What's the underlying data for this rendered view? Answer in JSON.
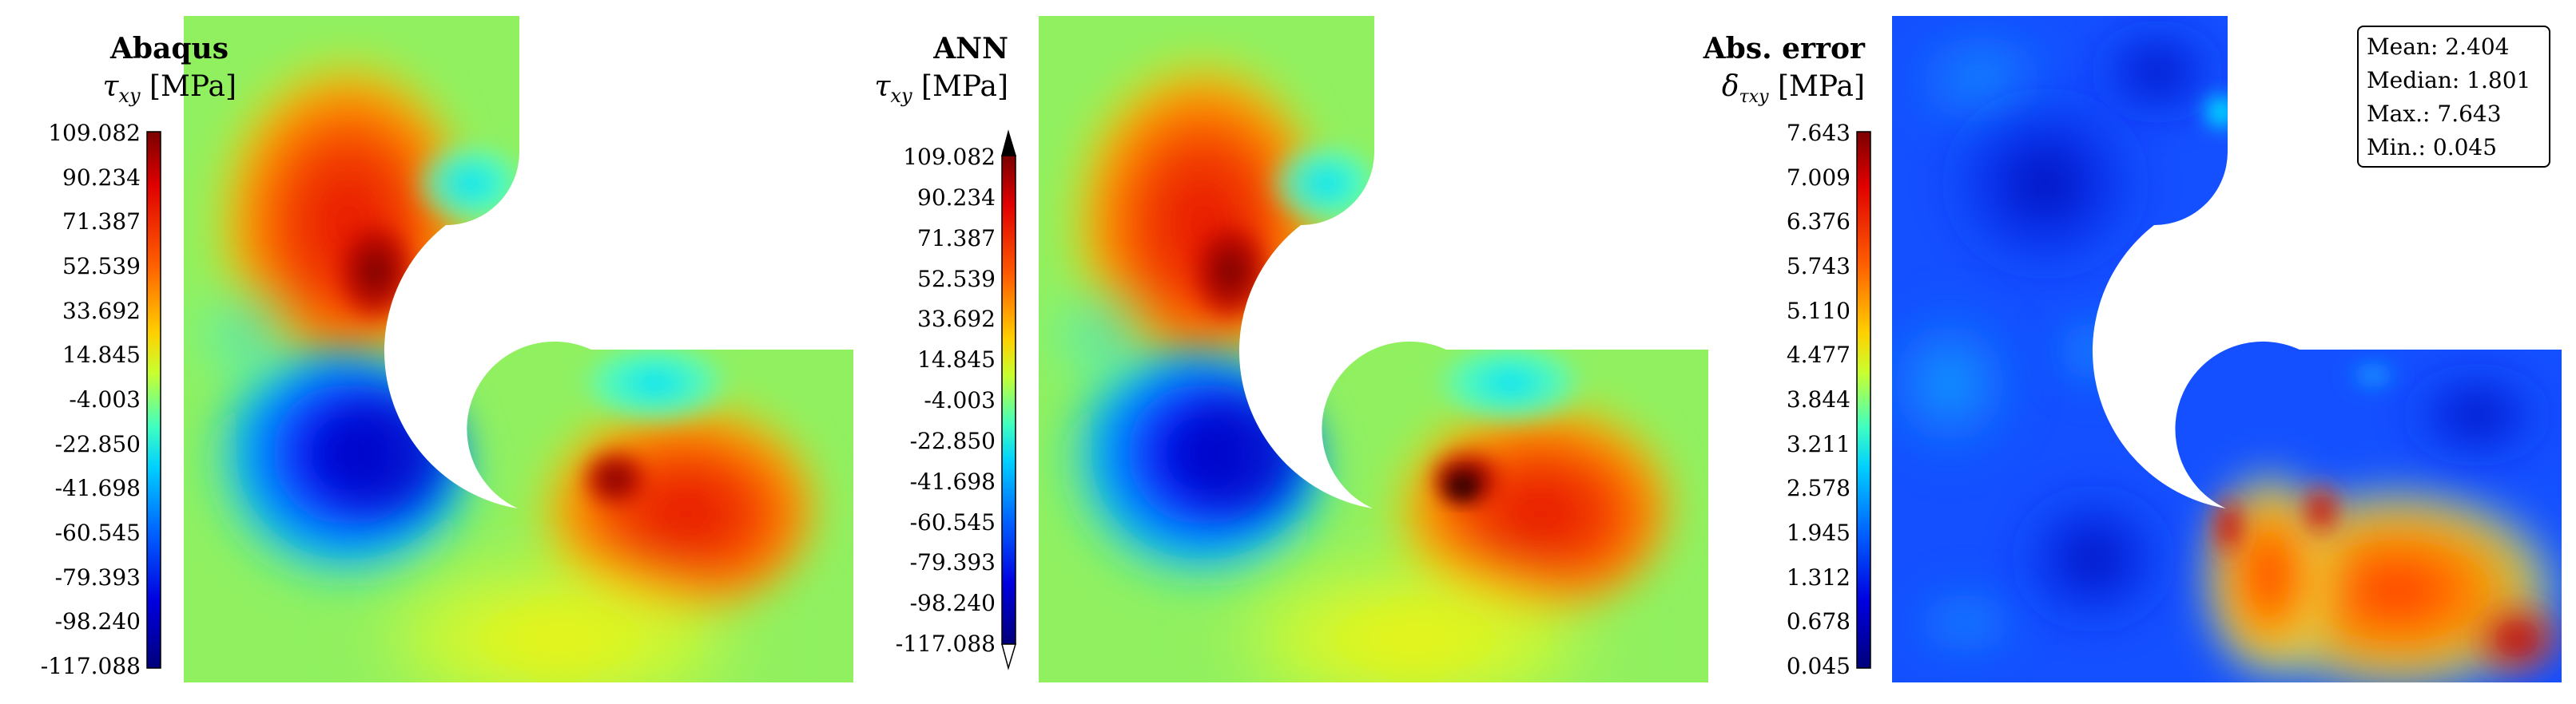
{
  "panels": [
    {
      "title": "Abaqus",
      "quantity": "τ",
      "quantity_sub": "xy",
      "unit": "[MPa]",
      "colorbar_ticks": [
        "109.082",
        "90.234",
        "71.387",
        "52.539",
        "33.692",
        "14.845",
        "-4.003",
        "-22.850",
        "-41.698",
        "-60.545",
        "-79.393",
        "-98.240",
        "-117.088"
      ],
      "colorbar_extend_arrows": false,
      "colormap": "jet"
    },
    {
      "title": "ANN",
      "quantity": "τ",
      "quantity_sub": "xy",
      "unit": "[MPa]",
      "colorbar_ticks": [
        "109.082",
        "90.234",
        "71.387",
        "52.539",
        "33.692",
        "14.845",
        "-4.003",
        "-22.850",
        "-41.698",
        "-60.545",
        "-79.393",
        "-98.240",
        "-117.088"
      ],
      "colorbar_extend_arrows": true,
      "colormap": "jet"
    },
    {
      "title": "Abs. error",
      "quantity": "δ",
      "quantity_sub": "τxy",
      "unit": "[MPa]",
      "colorbar_ticks": [
        "7.643",
        "7.009",
        "6.376",
        "5.743",
        "5.110",
        "4.477",
        "3.844",
        "3.211",
        "2.578",
        "1.945",
        "1.312",
        "0.678",
        "0.045"
      ],
      "colorbar_extend_arrows": false,
      "colormap": "jet"
    }
  ],
  "stats": {
    "mean": "Mean: 2.404",
    "median": "Median: 1.801",
    "max": "Max.: 7.643",
    "min": "Min.: 0.045"
  },
  "colors": {
    "background_field": "#90f060",
    "jet_dark_red": "#800000",
    "jet_red": "#ff1a00",
    "jet_orange": "#ff8c00",
    "jet_yellow": "#ffff00",
    "jet_cyan": "#00ffff",
    "jet_blue": "#0000ff",
    "jet_dark_blue": "#00008f"
  }
}
